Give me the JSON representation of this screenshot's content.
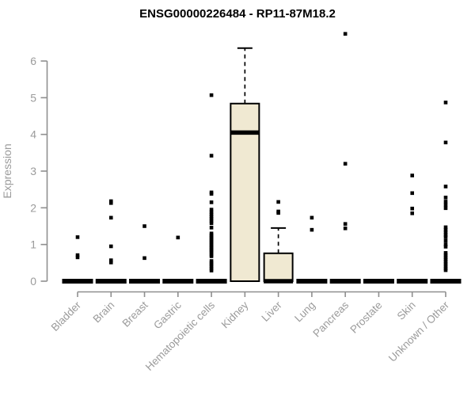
{
  "chart_data": {
    "type": "box",
    "title": "ENSG00000226484 - RP11-87M18.2",
    "ylabel": "Expression",
    "xlabel": "",
    "ylim": [
      0,
      6.8
    ],
    "yticks": [
      0,
      1,
      2,
      3,
      4,
      5,
      6
    ],
    "grid": false,
    "legend": null,
    "categories": [
      "Bladder",
      "Brain",
      "Breast",
      "Gastric",
      "Hematopoietic cells",
      "Kidney",
      "Liver",
      "Lung",
      "Pancreas",
      "Prostate",
      "Skin",
      "Unknown / Other"
    ],
    "boxes": [
      {
        "category": "Bladder",
        "whisker_low": 0,
        "q1": 0,
        "median": 0,
        "q3": 0,
        "whisker_high": 0,
        "outliers": [
          1.2,
          0.71,
          0.65
        ]
      },
      {
        "category": "Brain",
        "whisker_low": 0,
        "q1": 0,
        "median": 0,
        "q3": 0,
        "whisker_high": 0,
        "outliers": [
          2.18,
          2.13,
          1.73,
          0.95,
          0.57,
          0.51
        ]
      },
      {
        "category": "Breast",
        "whisker_low": 0,
        "q1": 0,
        "median": 0,
        "q3": 0,
        "whisker_high": 0,
        "outliers": [
          1.5,
          0.63
        ]
      },
      {
        "category": "Gastric",
        "whisker_low": 0,
        "q1": 0,
        "median": 0,
        "q3": 0,
        "whisker_high": 0,
        "outliers": [
          1.19
        ]
      },
      {
        "category": "Hematopoietic cells",
        "whisker_low": 0,
        "q1": 0,
        "median": 0,
        "q3": 0,
        "whisker_high": 0,
        "outliers": [
          5.07,
          3.42,
          2.42,
          2.38,
          2.15,
          1.95,
          1.88,
          1.82,
          1.76,
          1.7,
          1.64,
          1.58,
          1.46,
          1.3,
          1.26,
          1.22,
          1.18,
          1.14,
          1.1,
          1.06,
          1.02,
          0.98,
          0.94,
          0.9,
          0.86,
          0.82,
          0.78,
          0.72,
          0.68,
          0.55,
          0.5,
          0.45,
          0.4,
          0.34,
          0.29
        ]
      },
      {
        "category": "Kidney",
        "whisker_low": 0,
        "q1": 0,
        "median": 4.05,
        "q3": 4.84,
        "whisker_high": 6.35,
        "outliers": []
      },
      {
        "category": "Liver",
        "whisker_low": 0,
        "q1": 0,
        "median": 0,
        "q3": 0.76,
        "whisker_high": 1.45,
        "outliers": [
          2.16,
          1.9,
          1.86
        ]
      },
      {
        "category": "Lung",
        "whisker_low": 0,
        "q1": 0,
        "median": 0,
        "q3": 0,
        "whisker_high": 0,
        "outliers": [
          1.73,
          1.4
        ]
      },
      {
        "category": "Pancreas",
        "whisker_low": 0,
        "q1": 0,
        "median": 0,
        "q3": 0,
        "whisker_high": 0,
        "outliers": [
          6.74,
          3.2,
          1.56,
          1.44
        ]
      },
      {
        "category": "Prostate",
        "whisker_low": 0,
        "q1": 0,
        "median": 0,
        "q3": 0,
        "whisker_high": 0,
        "outliers": []
      },
      {
        "category": "Skin",
        "whisker_low": 0,
        "q1": 0,
        "median": 0,
        "q3": 0,
        "whisker_high": 0,
        "outliers": [
          2.88,
          2.4,
          1.98,
          1.85
        ]
      },
      {
        "category": "Unknown / Other",
        "whisker_low": 0,
        "q1": 0,
        "median": 0,
        "q3": 0,
        "whisker_high": 0,
        "outliers": [
          4.87,
          3.78,
          2.58,
          2.28,
          2.17,
          2.08,
          1.99,
          1.47,
          1.4,
          1.33,
          1.26,
          1.2,
          1.1,
          1.0,
          0.94,
          0.77,
          0.71,
          0.65,
          0.59,
          0.53,
          0.47,
          0.41,
          0.35,
          0.3
        ]
      }
    ],
    "colors": {
      "box_fill": "#F0E9D2",
      "box_stroke": "#000000",
      "median": "#000000",
      "outlier": "#000000",
      "axis": "#8f8f8f",
      "tick_label": "#9b9b9b",
      "title": "#000000"
    }
  }
}
